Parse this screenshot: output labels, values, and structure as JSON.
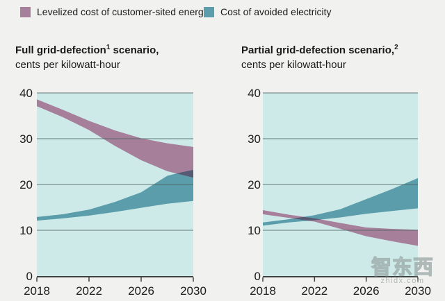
{
  "colors": {
    "page_bg": "#f1f1ef",
    "plot_bg": "#cdeae9",
    "mauve": "#a6809b",
    "teal": "#5b9dab",
    "overlap": "#565b74",
    "gridline": "#4e6361",
    "axis": "#3f4040",
    "text": "#1c1c1c"
  },
  "legend": {
    "items": [
      {
        "label": "Levelized cost of customer-sited energy",
        "color": "#a6809b"
      },
      {
        "label": "Cost of avoided electricity",
        "color": "#5b9dab"
      }
    ]
  },
  "watermark": {
    "cn": "智东西",
    "en": "zhidx.com"
  },
  "chart_data": [
    {
      "type": "area",
      "title_pre": "Full grid-defection",
      "title_sup": "1",
      "title_post": " scenario,",
      "subtitle": "cents per kilowatt-hour",
      "xlim": [
        2018,
        2030
      ],
      "ylim": [
        0,
        40
      ],
      "xticks": [
        2018,
        2022,
        2026,
        2030
      ],
      "yticks": [
        0,
        10,
        20,
        30,
        40
      ],
      "grid": "horizontal",
      "x": [
        2018,
        2020,
        2022,
        2024,
        2026,
        2028,
        2029,
        2030
      ],
      "series": [
        {
          "key": "avoided-electricity",
          "name": "Cost of avoided electricity",
          "color": "#5b9dab",
          "upper": [
            12.9,
            13.5,
            14.5,
            16.2,
            18.3,
            21.9,
            22.6,
            23.2
          ],
          "lower": [
            12.1,
            12.6,
            13.2,
            14.0,
            14.9,
            15.8,
            16.1,
            16.4
          ]
        },
        {
          "key": "lcoe",
          "name": "Levelized cost of customer-sited energy",
          "color": "#a6809b",
          "upper": [
            38.6,
            36.3,
            33.9,
            31.8,
            30.1,
            29.0,
            28.6,
            28.2
          ],
          "lower": [
            37.1,
            34.7,
            31.9,
            28.4,
            25.3,
            22.9,
            22.2,
            21.5
          ]
        }
      ],
      "overlap_note": "bands overlap ~2028.7-2030 between ~21.5 and ~23.2, shown dark"
    },
    {
      "type": "area",
      "title_pre": "Partial grid-defection scenario,",
      "title_sup": "2",
      "title_post": "",
      "subtitle": "cents per kilowatt-hour",
      "xlim": [
        2018,
        2030
      ],
      "ylim": [
        0,
        40
      ],
      "xticks": [
        2018,
        2022,
        2026,
        2030
      ],
      "yticks": [
        0,
        10,
        20,
        30,
        40
      ],
      "grid": "horizontal",
      "x": [
        2018,
        2020,
        2022,
        2024,
        2026,
        2028,
        2030
      ],
      "series": [
        {
          "key": "avoided-electricity",
          "name": "Cost of avoided electricity",
          "color": "#5b9dab",
          "upper": [
            11.7,
            12.4,
            13.3,
            14.6,
            16.8,
            19.0,
            21.4
          ],
          "lower": [
            11.0,
            11.7,
            12.2,
            12.8,
            13.6,
            14.2,
            14.8
          ]
        },
        {
          "key": "lcoe",
          "name": "Levelized cost of customer-sited energy",
          "color": "#a6809b",
          "upper": [
            14.4,
            13.4,
            12.6,
            11.6,
            10.6,
            10.3,
            10.1
          ],
          "lower": [
            13.5,
            12.7,
            11.9,
            10.3,
            8.7,
            7.6,
            6.6
          ]
        }
      ],
      "overlap_note": "bands cross ~2020.5-2022.5 around 12-13, shown dark"
    }
  ]
}
